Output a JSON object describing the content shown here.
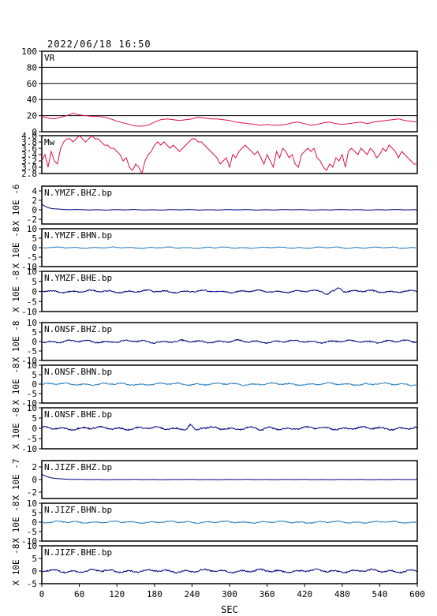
{
  "header": {
    "timestamp": "2022/06/18  16:50"
  },
  "colors": {
    "vr": "#dd1144",
    "mw": "#dd1144",
    "bhz": "#000080",
    "bhn": "#2a7fbf",
    "bhe": "#000080",
    "frame": "#000000"
  },
  "chart_data": {
    "type": "line",
    "xlabel": "SEC",
    "xlim": [
      0,
      600
    ],
    "xticks": [
      0,
      60,
      120,
      180,
      240,
      300,
      360,
      420,
      480,
      540,
      600
    ],
    "panels": [
      {
        "id": "vr",
        "label": "VR",
        "ylabel": "",
        "ylim": [
          0,
          100
        ],
        "yticks": [
          0,
          20,
          40,
          60,
          80,
          100
        ],
        "hgrid": true,
        "color_key": "vr",
        "series_x": [
          0,
          10,
          20,
          30,
          40,
          50,
          60,
          70,
          80,
          90,
          100,
          110,
          120,
          130,
          140,
          150,
          160,
          170,
          180,
          190,
          200,
          210,
          220,
          230,
          240,
          250,
          260,
          270,
          280,
          290,
          300,
          310,
          320,
          330,
          340,
          350,
          360,
          370,
          380,
          390,
          400,
          410,
          420,
          430,
          440,
          450,
          460,
          470,
          480,
          490,
          500,
          510,
          520,
          530,
          540,
          550,
          560,
          570,
          580,
          590,
          600
        ],
        "series_y": [
          19,
          17,
          16,
          18,
          20,
          23,
          21,
          20,
          19,
          19,
          18,
          16,
          13,
          11,
          9,
          7,
          7,
          8,
          12,
          15,
          16,
          15,
          14,
          15,
          16,
          18,
          17,
          16,
          16,
          15,
          14,
          12,
          11,
          10,
          9,
          8,
          9,
          8,
          8,
          9,
          11,
          12,
          10,
          8,
          9,
          11,
          12,
          10,
          9,
          10,
          11,
          12,
          10,
          12,
          13,
          14,
          15,
          16,
          14,
          13,
          12
        ]
      },
      {
        "id": "mw",
        "label": "Mw",
        "ylabel": "",
        "ylim": [
          2.8,
          4.0
        ],
        "yticks": [
          2.8,
          3.0,
          3.2,
          3.4,
          3.6,
          3.8,
          4.0
        ],
        "ytick_labels": [
          "2.8",
          "3.0",
          "3.2",
          "3.4",
          "3.6",
          "3.8",
          "4.0"
        ],
        "hgrid": false,
        "color_key": "mw",
        "series_x": [
          0,
          5,
          10,
          15,
          20,
          25,
          30,
          35,
          40,
          45,
          50,
          55,
          60,
          65,
          70,
          75,
          80,
          85,
          90,
          95,
          100,
          105,
          110,
          115,
          120,
          125,
          130,
          135,
          140,
          145,
          150,
          155,
          160,
          165,
          170,
          175,
          180,
          185,
          190,
          195,
          200,
          205,
          210,
          215,
          220,
          225,
          230,
          235,
          240,
          245,
          250,
          255,
          260,
          265,
          270,
          275,
          280,
          285,
          290,
          295,
          300,
          305,
          310,
          315,
          320,
          325,
          330,
          335,
          340,
          345,
          350,
          355,
          360,
          365,
          370,
          375,
          380,
          385,
          390,
          395,
          400,
          405,
          410,
          415,
          420,
          425,
          430,
          435,
          440,
          445,
          450,
          455,
          460,
          465,
          470,
          475,
          480,
          485,
          490,
          495,
          500,
          505,
          510,
          515,
          520,
          525,
          530,
          535,
          540,
          545,
          550,
          555,
          560,
          565,
          570,
          575,
          580,
          585,
          590,
          595,
          600
        ],
        "series_y": [
          3.2,
          3.4,
          3.0,
          3.5,
          3.2,
          3.1,
          3.6,
          3.8,
          3.9,
          3.9,
          3.8,
          3.9,
          4.0,
          3.9,
          3.8,
          3.9,
          4.0,
          3.9,
          3.9,
          3.8,
          3.7,
          3.7,
          3.6,
          3.6,
          3.5,
          3.4,
          3.2,
          3.3,
          3.0,
          2.9,
          3.1,
          3.0,
          2.8,
          3.2,
          3.4,
          3.5,
          3.7,
          3.8,
          3.7,
          3.8,
          3.7,
          3.6,
          3.7,
          3.6,
          3.5,
          3.6,
          3.7,
          3.8,
          3.9,
          3.9,
          3.8,
          3.8,
          3.7,
          3.6,
          3.5,
          3.4,
          3.3,
          3.1,
          3.2,
          3.3,
          3.0,
          3.4,
          3.3,
          3.5,
          3.6,
          3.7,
          3.6,
          3.5,
          3.4,
          3.5,
          3.3,
          3.1,
          3.4,
          3.2,
          3.0,
          3.5,
          3.3,
          3.6,
          3.5,
          3.3,
          3.4,
          3.1,
          3.0,
          3.4,
          3.5,
          3.6,
          3.5,
          3.6,
          3.3,
          3.2,
          3.0,
          2.9,
          3.1,
          3.0,
          3.3,
          3.2,
          3.4,
          3.0,
          3.5,
          3.6,
          3.5,
          3.4,
          3.6,
          3.5,
          3.4,
          3.6,
          3.5,
          3.3,
          3.4,
          3.6,
          3.5,
          3.7,
          3.6,
          3.5,
          3.3,
          3.5,
          3.4,
          3.3,
          3.2,
          3.1,
          3.1
        ]
      },
      {
        "id": "ymzf-bhz",
        "label": "N.YMZF.BHZ.bp",
        "ylabel": "X 10E -6",
        "ylim": [
          -3,
          5
        ],
        "yticks": [
          -2,
          0,
          2,
          4
        ],
        "color_key": "bhz",
        "base_amp": 0.05,
        "decay": {
          "amp": 0.6,
          "tau": 12
        },
        "bumps": []
      },
      {
        "id": "ymzf-bhn",
        "label": "N.YMZF.BHN.bp",
        "ylabel": "X 10E -8",
        "ylim": [
          -10,
          10
        ],
        "yticks": [
          -10,
          -5,
          0,
          5,
          10
        ],
        "color_key": "bhn",
        "base_amp": 0.35,
        "decay": null,
        "bumps": []
      },
      {
        "id": "ymzf-bhe",
        "label": "N.YMZF.BHE.bp",
        "ylabel": "X 10E -8",
        "ylim": [
          -10,
          10
        ],
        "yticks": [
          -10,
          -5,
          0,
          5,
          10
        ],
        "color_key": "bhe",
        "base_amp": 0.6,
        "decay": null,
        "bumps": [
          {
            "t": 475,
            "amp": 2.0,
            "w": 6
          },
          {
            "t": 455,
            "amp": -1.2,
            "w": 5
          }
        ]
      },
      {
        "id": "onsf-bhz",
        "label": "N.ONSF.BHZ.bp",
        "ylabel": "X 10E -8",
        "ylim": [
          -10,
          10
        ],
        "yticks": [
          -10,
          -5,
          0,
          5,
          10
        ],
        "color_key": "bhz",
        "base_amp": 0.7,
        "decay": null,
        "bumps": []
      },
      {
        "id": "onsf-bhn",
        "label": "N.ONSF.BHN.bp",
        "ylabel": "X 10E -8",
        "ylim": [
          -10,
          10
        ],
        "yticks": [
          -10,
          -5,
          0,
          5,
          10
        ],
        "color_key": "bhn",
        "base_amp": 0.6,
        "decay": null,
        "bumps": []
      },
      {
        "id": "onsf-bhe",
        "label": "N.ONSF.BHE.bp",
        "ylabel": "X 10E -8",
        "ylim": [
          -10,
          10
        ],
        "yticks": [
          -10,
          -5,
          0,
          5,
          10
        ],
        "color_key": "bhe",
        "base_amp": 0.7,
        "decay": null,
        "bumps": [
          {
            "t": 238,
            "amp": 1.8,
            "w": 5
          },
          {
            "t": 246,
            "amp": -1.6,
            "w": 5
          },
          {
            "t": 350,
            "amp": -1.0,
            "w": 6
          }
        ]
      },
      {
        "id": "jizf-bhz",
        "label": "N.JIZF.BHZ.bp",
        "ylabel": "X 10E -7",
        "ylim": [
          -3,
          3
        ],
        "yticks": [
          -2,
          0,
          2
        ],
        "color_key": "bhz",
        "base_amp": 0.02,
        "decay": {
          "amp": 0.55,
          "tau": 15
        },
        "bumps": []
      },
      {
        "id": "jizf-bhn",
        "label": "N.JIZF.BHN.bp",
        "ylabel": "X 10E -8",
        "ylim": [
          -10,
          10
        ],
        "yticks": [
          -10,
          -5,
          0,
          5,
          10
        ],
        "color_key": "bhn",
        "base_amp": 0.5,
        "decay": null,
        "bumps": []
      },
      {
        "id": "jizf-bhe",
        "label": "N.JIZF.BHE.bp",
        "ylabel": "X 10E -8",
        "ylim": [
          -5,
          10
        ],
        "yticks": [
          -5,
          0,
          5,
          10
        ],
        "color_key": "bhe",
        "base_amp": 0.6,
        "decay": null,
        "bumps": []
      }
    ]
  }
}
